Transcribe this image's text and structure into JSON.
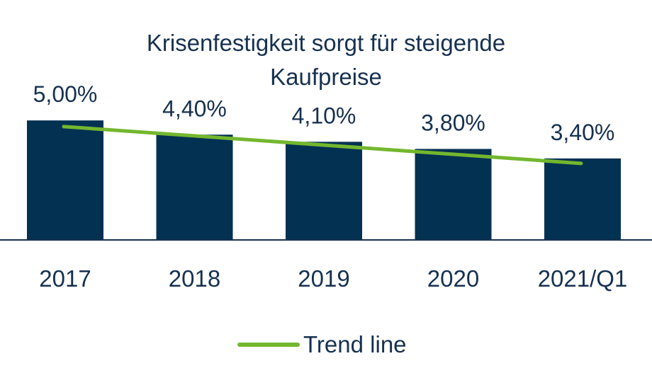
{
  "chart_data": {
    "type": "bar",
    "title_lines": [
      "Krisenfestigkeit sorgt für steigende",
      "Kaufpreise"
    ],
    "categories": [
      "2017",
      "2018",
      "2019",
      "2020",
      "2021/Q1"
    ],
    "values": [
      5.0,
      4.4,
      4.1,
      3.8,
      3.4
    ],
    "value_labels": [
      "5,00%",
      "4,40%",
      "4,10%",
      "3,80%",
      "3,40%"
    ],
    "trend": {
      "name": "Trend line",
      "start": 4.95,
      "end": 3.4
    },
    "ylim": [
      0,
      5.6
    ],
    "grid": false,
    "legend_position": "bottom-center",
    "colors": {
      "bar": "#033152",
      "trend": "#73B72E",
      "text": "#163150",
      "axis": "#163150"
    }
  }
}
